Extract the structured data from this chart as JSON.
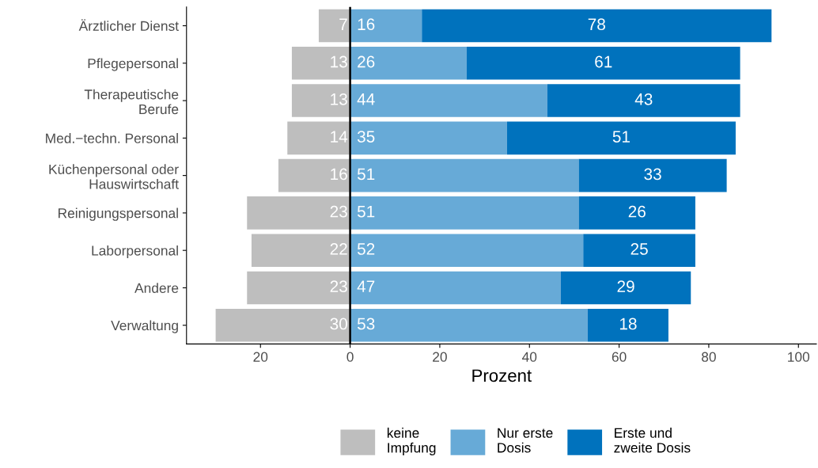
{
  "chart_data": {
    "type": "bar",
    "orientation": "horizontal",
    "stacked": true,
    "xlabel": "Prozent",
    "categories": [
      "Ärztlicher Dienst",
      "Pflegepersonal",
      "Therapeutische\nBerufe",
      "Med.−techn. Personal",
      "Küchenpersonal oder\nHauswirtschaft",
      "Reinigungspersonal",
      "Laborpersonal",
      "Andere",
      "Verwaltung"
    ],
    "series": [
      {
        "name": "keine\nImpfung",
        "color": "#bebebe",
        "values": [
          7,
          13,
          13,
          14,
          16,
          23,
          22,
          23,
          30
        ],
        "base": [
          -7,
          -13,
          -13,
          -14,
          -16,
          -23,
          -22,
          -23,
          -30
        ],
        "value_labels": [
          "7",
          "13",
          "13",
          "14",
          "16",
          "23",
          "22",
          "23",
          "30"
        ]
      },
      {
        "name": "Nur erste\nDosis",
        "color": "#67aad7",
        "values": [
          16,
          26,
          44,
          35,
          51,
          51,
          52,
          47,
          53
        ],
        "value_labels": [
          "16",
          "26",
          "44",
          "35",
          "51",
          "51",
          "52",
          "47",
          "53"
        ]
      },
      {
        "name": "Erste und\nzweite Dosis",
        "color": "#0072bd",
        "values": [
          78,
          61,
          43,
          51,
          33,
          26,
          25,
          29,
          18
        ],
        "value_labels": [
          "78",
          "61",
          "43",
          "51",
          "33",
          "26",
          "25",
          "29",
          "18"
        ]
      }
    ],
    "xlim": [
      -36.5,
      104
    ],
    "xticks": [
      {
        "value": -20,
        "label": "20"
      },
      0,
      20,
      40,
      60,
      80,
      100
    ],
    "ref_lines": [
      {
        "axis": "x",
        "value": 0,
        "color": "#000000"
      }
    ],
    "grid": false,
    "legend": "bottom"
  }
}
